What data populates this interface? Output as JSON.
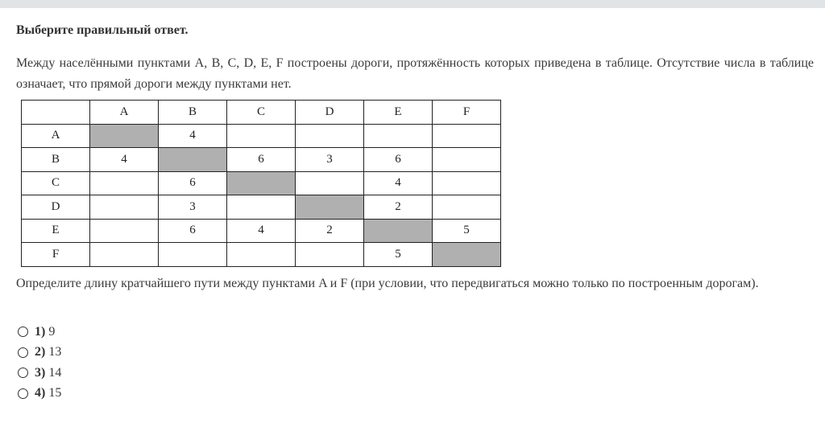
{
  "instruction": "Выберите правильный ответ.",
  "intro": "Между населёнными пунктами A, B, C, D, E, F построены дороги, протяжённость которых приведена в таблице. Отсутствие числа в таблице означает, что прямой дороги между пунктами нет.",
  "table": {
    "headers": [
      "",
      "A",
      "B",
      "C",
      "D",
      "E",
      "F"
    ],
    "rows": [
      [
        "A",
        "",
        "4",
        "",
        "",
        "",
        ""
      ],
      [
        "B",
        "4",
        "",
        "6",
        "3",
        "6",
        ""
      ],
      [
        "C",
        "",
        "6",
        "",
        "",
        "4",
        ""
      ],
      [
        "D",
        "",
        "3",
        "",
        "",
        "2",
        ""
      ],
      [
        "E",
        "",
        "6",
        "4",
        "2",
        "",
        "5"
      ],
      [
        "F",
        "",
        "",
        "",
        "",
        "5",
        ""
      ]
    ],
    "diagonal_color": "#b0b0b0"
  },
  "question": "Определите длину кратчайшего пути между пунктами A и F (при условии, что передвигаться можно только по построенным дорогам).",
  "answers": [
    {
      "num": "1)",
      "value": "9"
    },
    {
      "num": "2)",
      "value": "13"
    },
    {
      "num": "3)",
      "value": "14"
    },
    {
      "num": "4)",
      "value": "15"
    }
  ]
}
